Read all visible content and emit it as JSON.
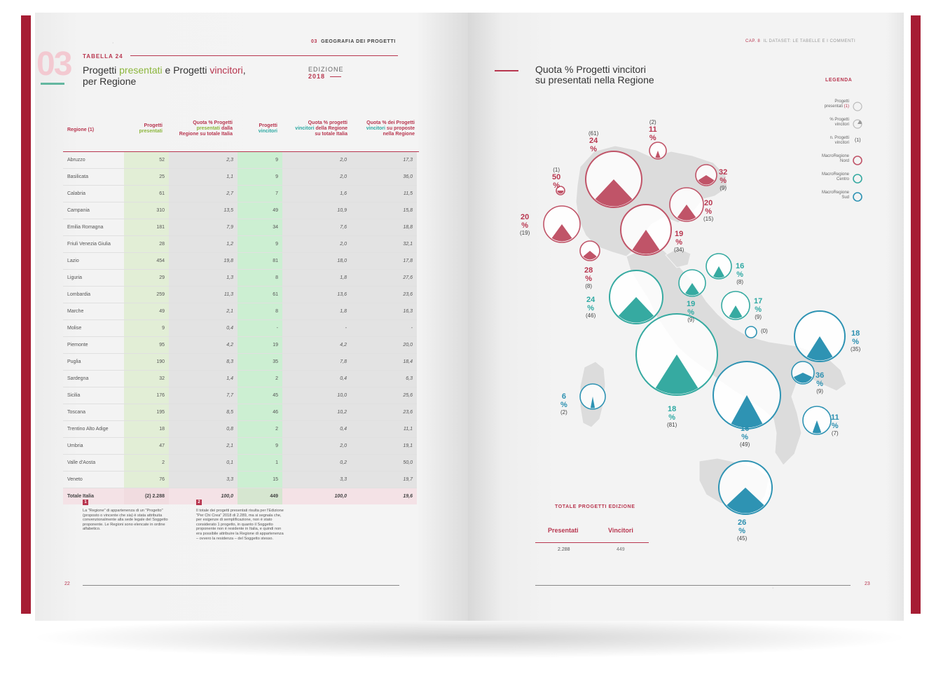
{
  "left": {
    "section_number": "03",
    "section_title": "GEOGRAFIA DEI PROGETTI",
    "section_prefix": "03",
    "table_label": "TABELLA 24",
    "title_a": "Progetti ",
    "title_b": "presentati",
    "title_c": " e Progetti ",
    "title_d": "vincitori",
    "title_e": ",",
    "title_line2": "per Regione",
    "edition_label": "EDIZIONE",
    "edition_year": "2018",
    "page_number": "22",
    "headers": {
      "region": "Regione (1)",
      "presented_1": "Progetti",
      "presented_2": "presentati",
      "quota_pres_1": "Quota % Progetti",
      "quota_pres_2": "presentati",
      "quota_pres_2b": " dalla",
      "quota_pres_3": "Regione su totale Italia",
      "winners_1": "Progetti",
      "winners_2": "vincitori",
      "quota_win_1": "Quota %  progetti",
      "quota_win_2": "vincitori",
      "quota_win_2b": " della Regione",
      "quota_win_3": "su totale Italia",
      "quota_prop_1": "Quota % dei Progetti",
      "quota_prop_2": "vincitori",
      "quota_prop_2b": " su proposte",
      "quota_prop_3": "nella Regione"
    },
    "rows": [
      {
        "region": "Abruzzo",
        "pres": "52",
        "qp": "2,3",
        "win": "9",
        "qw": "2,0",
        "qr": "17,3"
      },
      {
        "region": "Basilicata",
        "pres": "25",
        "qp": "1,1",
        "win": "9",
        "qw": "2,0",
        "qr": "36,0"
      },
      {
        "region": "Calabria",
        "pres": "61",
        "qp": "2,7",
        "win": "7",
        "qw": "1,6",
        "qr": "11,5"
      },
      {
        "region": "Campania",
        "pres": "310",
        "qp": "13,5",
        "win": "49",
        "qw": "10,9",
        "qr": "15,8"
      },
      {
        "region": "Emilia Romagna",
        "pres": "181",
        "qp": "7,9",
        "win": "34",
        "qw": "7,6",
        "qr": "18,8"
      },
      {
        "region": "Friuli Venezia Giulia",
        "pres": "28",
        "qp": "1,2",
        "win": "9",
        "qw": "2,0",
        "qr": "32,1"
      },
      {
        "region": "Lazio",
        "pres": "454",
        "qp": "19,8",
        "win": "81",
        "qw": "18,0",
        "qr": "17,8"
      },
      {
        "region": "Liguria",
        "pres": "29",
        "qp": "1,3",
        "win": "8",
        "qw": "1,8",
        "qr": "27,6"
      },
      {
        "region": "Lombardia",
        "pres": "259",
        "qp": "11,3",
        "win": "61",
        "qw": "13,6",
        "qr": "23,6"
      },
      {
        "region": "Marche",
        "pres": "49",
        "qp": "2,1",
        "win": "8",
        "qw": "1,8",
        "qr": "16,3"
      },
      {
        "region": "Molise",
        "pres": "9",
        "qp": "0,4",
        "win": "-",
        "qw": "-",
        "qr": "-"
      },
      {
        "region": "Piemonte",
        "pres": "95",
        "qp": "4,2",
        "win": "19",
        "qw": "4,2",
        "qr": "20,0"
      },
      {
        "region": "Puglia",
        "pres": "190",
        "qp": "8,3",
        "win": "35",
        "qw": "7,8",
        "qr": "18,4"
      },
      {
        "region": "Sardegna",
        "pres": "32",
        "qp": "1,4",
        "win": "2",
        "qw": "0,4",
        "qr": "6,3"
      },
      {
        "region": "Sicilia",
        "pres": "176",
        "qp": "7,7",
        "win": "45",
        "qw": "10,0",
        "qr": "25,6"
      },
      {
        "region": "Toscana",
        "pres": "195",
        "qp": "8,5",
        "win": "46",
        "qw": "10,2",
        "qr": "23,6"
      },
      {
        "region": "Trentino Alto Adige",
        "pres": "18",
        "qp": "0,8",
        "win": "2",
        "qw": "0,4",
        "qr": "11,1"
      },
      {
        "region": "Umbria",
        "pres": "47",
        "qp": "2,1",
        "win": "9",
        "qw": "2,0",
        "qr": "19,1"
      },
      {
        "region": "Valle d'Aosta",
        "pres": "2",
        "qp": "0,1",
        "win": "1",
        "qw": "0,2",
        "qr": "50,0"
      },
      {
        "region": "Veneto",
        "pres": "76",
        "qp": "3,3",
        "win": "15",
        "qw": "3,3",
        "qr": "19,7"
      }
    ],
    "total": {
      "region": "Totale Italia",
      "pres": "(2) 2.288",
      "qp": "100,0",
      "win": "449",
      "qw": "100,0",
      "qr": "19,6"
    },
    "footnote1": {
      "num": "1",
      "text": "La \"Regione\" di appartenenza di un \"Progetto\" (proposto o vincente che sia) è stata attribuita convenzionalmente alla sede legale del Soggetto proponente. Le Regioni sono elencate in ordine alfabetico."
    },
    "footnote2": {
      "num": "2",
      "text": "Il totale dei progetti presentati risulta per l'Edizione \"Per Chi Crea\" 2018 di 2.289, ma si segnala che, per esigenze di semplificazione, non è stato considerato 1 progetto, in quanto il Soggetto proponente non è residente in Italia, e quindi non era possibile attribuire la Regione di appartenenza – ovvero la residenza – del Soggetto stesso."
    }
  },
  "right": {
    "chapter": "CAP. 8",
    "chapter_title": "IL DATASET: LE TABELLE E I COMMENTI",
    "title_line1": "Quota % Progetti vincitori",
    "title_line2": "su presentati nella Regione",
    "page_number": "23",
    "legend": {
      "title": "LEGENDA",
      "item1_a": "Progetti",
      "item1_b": "presentati ",
      "item1_note": "(1)",
      "item2_a": "% Progetti",
      "item2_b": "vincitori",
      "item3_a": "n. Progetti",
      "item3_b": "vincitori",
      "item3_sym": "(1)",
      "item4_a": "MacroRegione",
      "item4_b": "Nord",
      "item5_a": "MacroRegione",
      "item5_b": "Centro",
      "item6_a": "MacroRegione",
      "item6_b": "Sud"
    },
    "colors": {
      "nord": "#c05468",
      "centro": "#36aaa1",
      "sud": "#2e93b3",
      "accent": "#b8364f",
      "green": "#8cb63c"
    },
    "bubbles": [
      {
        "id": "lombardia",
        "pct": "24 %",
        "count": "(61)",
        "macro": "nord",
        "share": 0.24
      },
      {
        "id": "trentino",
        "pct": "11 %",
        "count": "(2)",
        "macro": "nord",
        "share": 0.11
      },
      {
        "id": "friuli",
        "pct": "32 %",
        "count": "(9)",
        "macro": "nord",
        "share": 0.32
      },
      {
        "id": "valle-aosta",
        "pct": "50 %",
        "count": "(1)",
        "macro": "nord",
        "share": 0.5
      },
      {
        "id": "veneto",
        "pct": "20 %",
        "count": "(15)",
        "macro": "nord",
        "share": 0.2
      },
      {
        "id": "piemonte",
        "pct": "20 %",
        "count": "(19)",
        "macro": "nord",
        "share": 0.2
      },
      {
        "id": "emilia",
        "pct": "19 %",
        "count": "(34)",
        "macro": "nord",
        "share": 0.19
      },
      {
        "id": "liguria",
        "pct": "28 %",
        "count": "(8)",
        "macro": "nord",
        "share": 0.28
      },
      {
        "id": "marche",
        "pct": "16 %",
        "count": "(8)",
        "macro": "centro",
        "share": 0.16
      },
      {
        "id": "toscana",
        "pct": "24 %",
        "count": "(46)",
        "macro": "centro",
        "share": 0.24
      },
      {
        "id": "umbria",
        "pct": "19 %",
        "count": "(9)",
        "macro": "centro",
        "share": 0.19
      },
      {
        "id": "abruzzo",
        "pct": "17 %",
        "count": "(9)",
        "macro": "centro",
        "share": 0.17
      },
      {
        "id": "molise",
        "pct": "",
        "count": "(0)",
        "macro": "sud",
        "share": 0
      },
      {
        "id": "puglia",
        "pct": "18 %",
        "count": "(35)",
        "macro": "sud",
        "share": 0.18
      },
      {
        "id": "lazio",
        "pct": "18 %",
        "count": "(81)",
        "macro": "centro",
        "share": 0.18
      },
      {
        "id": "basilicata",
        "pct": "36 %",
        "count": "(9)",
        "macro": "sud",
        "share": 0.36
      },
      {
        "id": "sardegna",
        "pct": "6 %",
        "count": "(2)",
        "macro": "sud",
        "share": 0.06
      },
      {
        "id": "campania",
        "pct": "16 %",
        "count": "(49)",
        "macro": "sud",
        "share": 0.16
      },
      {
        "id": "calabria",
        "pct": "11 %",
        "count": "(7)",
        "macro": "sud",
        "share": 0.11
      },
      {
        "id": "sicilia",
        "pct": "26 %",
        "count": "(45)",
        "macro": "sud",
        "share": 0.26
      }
    ],
    "totals": {
      "title": "TOTALE PROGETTI EDIZIONE",
      "presented_label": "Presentati",
      "winners_label": "Vincitori",
      "presented_value": "2.288",
      "winners_value": "449"
    }
  }
}
